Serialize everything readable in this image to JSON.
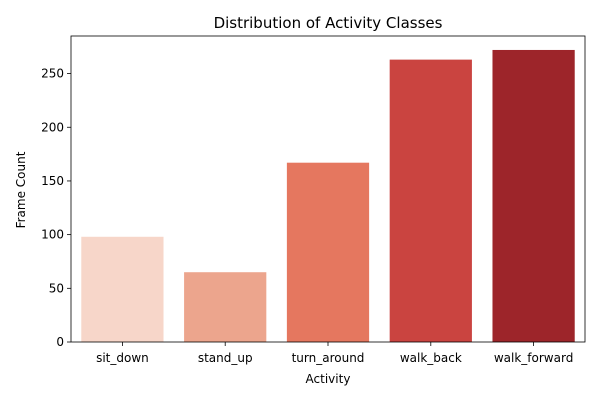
{
  "chart_data": {
    "type": "bar",
    "title": "Distribution of Activity Classes",
    "xlabel": "Activity",
    "ylabel": "Frame Count",
    "categories": [
      "sit_down",
      "stand_up",
      "turn_around",
      "walk_back",
      "walk_forward"
    ],
    "values": [
      98,
      65,
      167,
      263,
      272
    ],
    "colors": [
      "#f7d6c9",
      "#eca58d",
      "#e5775f",
      "#ca4440",
      "#9d252a"
    ],
    "yticks": [
      0,
      50,
      100,
      150,
      200,
      250
    ],
    "ylim": [
      0,
      285
    ],
    "grid": false,
    "legend": "none"
  }
}
